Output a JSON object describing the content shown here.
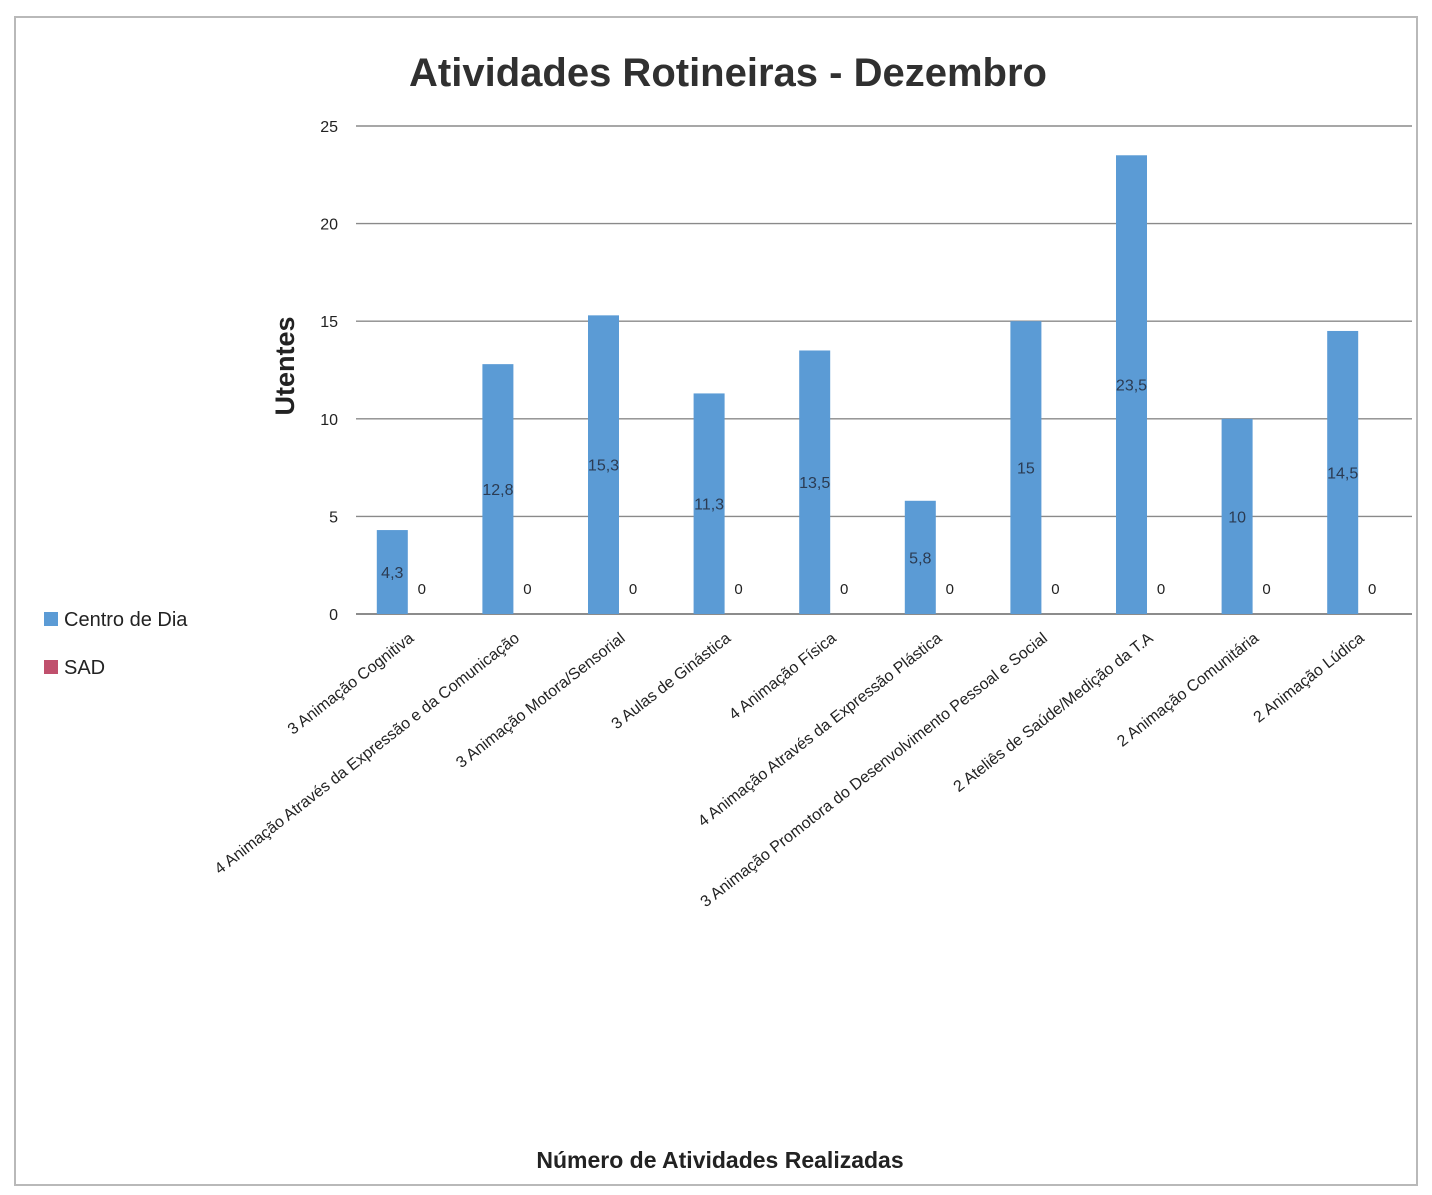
{
  "chart_data": {
    "type": "bar",
    "title": "Atividades Rotineiras - Dezembro",
    "xlabel": "Número de Atividades Realizadas",
    "ylabel": "Utentes",
    "ylim": [
      0,
      25
    ],
    "yticks": [
      "0",
      "5",
      "10",
      "15",
      "20",
      "25"
    ],
    "grid": true,
    "legend_placement": "left",
    "categories": [
      "3 Animação Cognitiva",
      "4 Animação Através da Expressão e da Comunicação",
      "3 Animação Motora/Sensorial",
      "3 Aulas de Ginástica",
      "4 Animação Física",
      "4 Animação Através da Expressão Plástica",
      "3 Animação Promotora do Desenvolvimento Pessoal e Social",
      "2 Ateliês de Saúde/Medição da T.A",
      "2 Animação Comunitária",
      "2 Animação Lúdica"
    ],
    "series": [
      {
        "name": "Centro de Dia",
        "color": "#5b9bd5",
        "values": [
          4.3,
          12.8,
          15.3,
          11.3,
          13.5,
          5.8,
          15,
          23.5,
          10,
          14.5
        ],
        "labels": [
          "4,3",
          "12,8",
          "15,3",
          "11,3",
          "13,5",
          "5,8",
          "15",
          "23,5",
          "10",
          "14,5"
        ]
      },
      {
        "name": "SAD",
        "color": "#c0506d",
        "values": [
          0,
          0,
          0,
          0,
          0,
          0,
          0,
          0,
          0,
          0
        ],
        "labels": [
          "0",
          "0",
          "0",
          "0",
          "0",
          "0",
          "0",
          "0",
          "0",
          "0"
        ]
      }
    ]
  }
}
